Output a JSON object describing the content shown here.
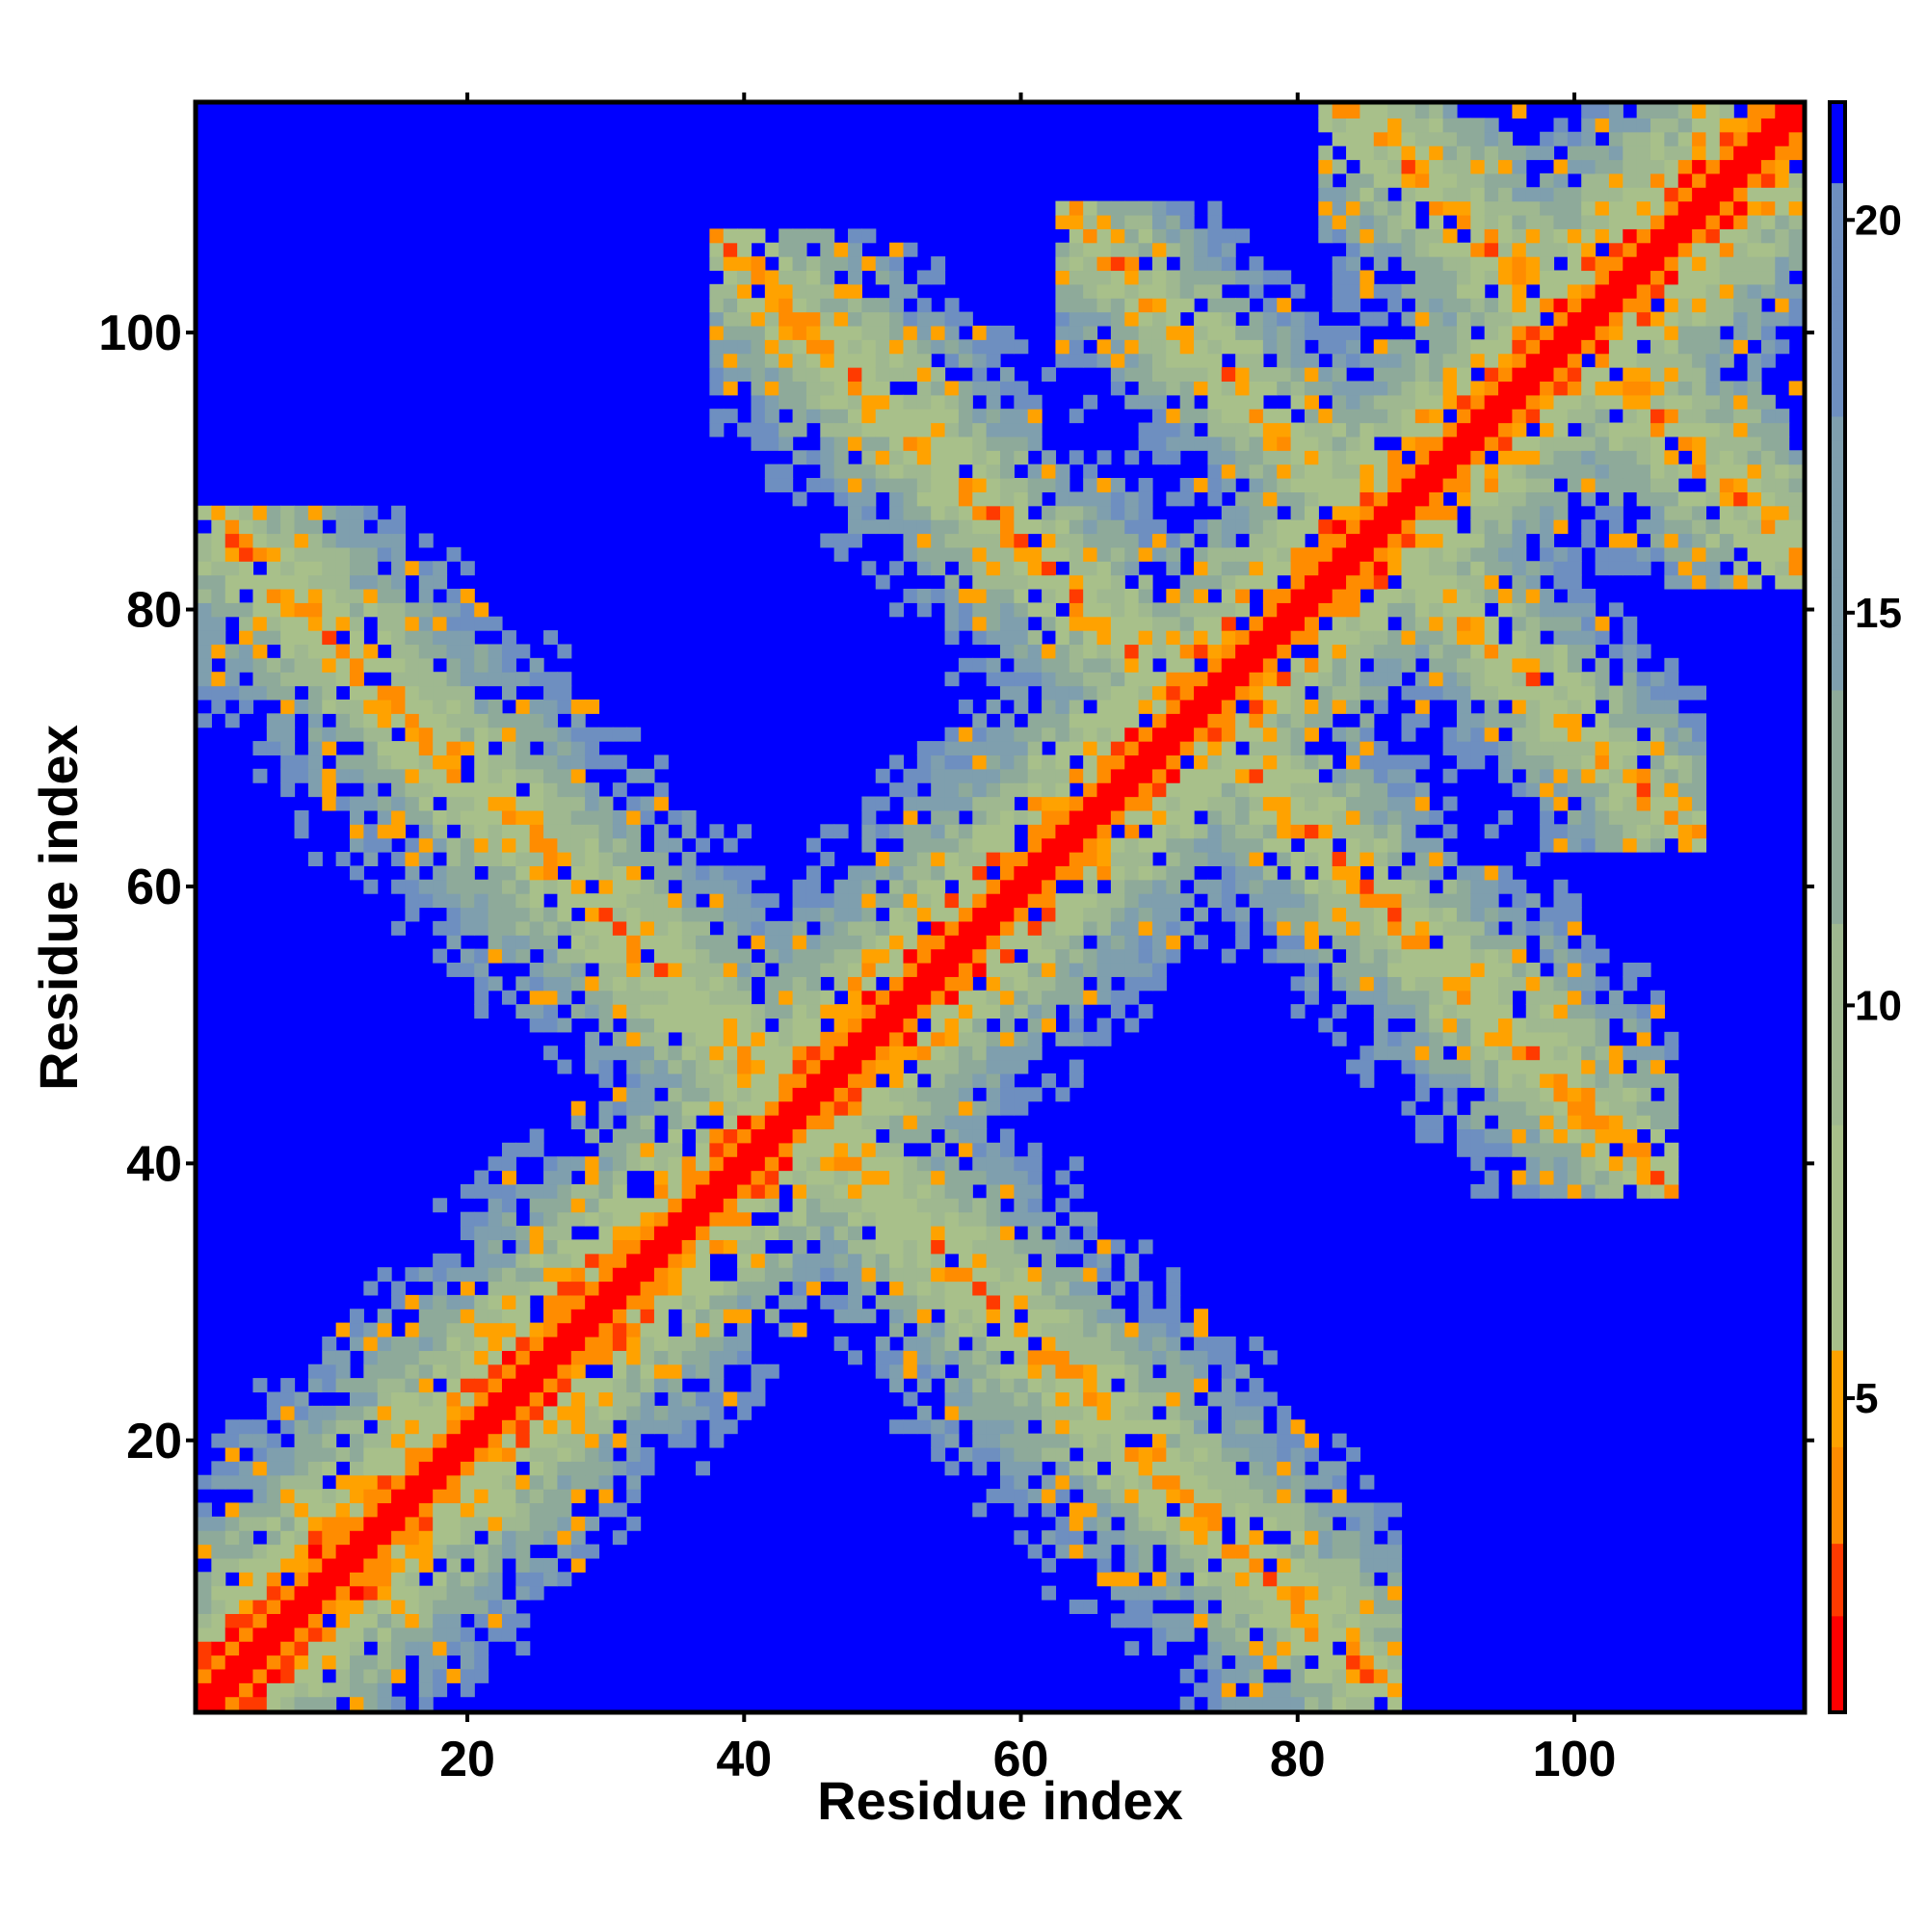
{
  "chart_data": {
    "type": "heatmap",
    "title": "",
    "xlabel": "Residue index",
    "ylabel": "Residue index",
    "n_residues": 116,
    "xlim": [
      1,
      116
    ],
    "ylim": [
      1,
      116
    ],
    "x_ticks": [
      20,
      40,
      60,
      80,
      100
    ],
    "y_ticks": [
      20,
      40,
      60,
      80,
      100
    ],
    "colorbar": {
      "ticks": [
        5,
        10,
        15,
        20
      ],
      "range": [
        1,
        21.5
      ]
    },
    "colors": {
      "far": "#0000ff",
      "near": "#ff0000",
      "scale": [
        "#ff0000",
        "#ff3a00",
        "#ff8c00",
        "#ffa200",
        "#a8c08a",
        "#9fb890",
        "#8eaa9a",
        "#7f9fae",
        "#6e8fc0",
        "#0000ff"
      ]
    },
    "cutoff_distance": 21,
    "contact_bands": [
      {
        "along": "diagonal",
        "from": 1,
        "to": 116,
        "width": 7
      },
      {
        "along": "antidiagonal",
        "sum": 88,
        "from_x": 3,
        "to_x": 40,
        "width": 9
      },
      {
        "along": "antidiagonal",
        "sum": 145,
        "from_x": 40,
        "to_x": 65,
        "width": 8
      },
      {
        "along": "antidiagonal",
        "sum": 172,
        "from_x": 65,
        "to_x": 100,
        "width": 7
      },
      {
        "along": "antidiagonal",
        "sum": 200,
        "from_x": 87,
        "to_x": 116,
        "width": 9
      }
    ]
  }
}
